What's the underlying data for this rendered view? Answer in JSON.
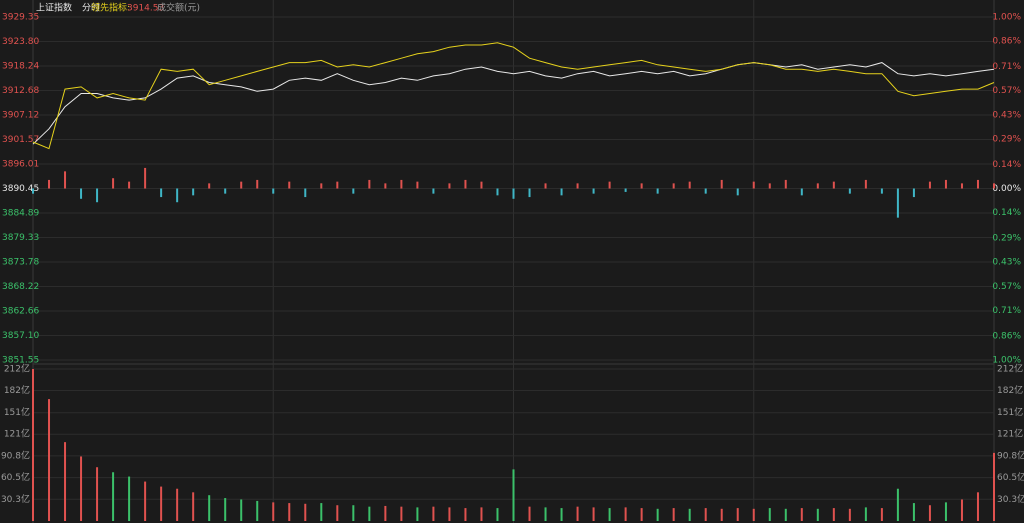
{
  "chart_data": [
    {
      "type": "line",
      "title": "上证指数",
      "subtitle": "分时",
      "indicator_value": 3914.53,
      "indicator_color": "#e0524f",
      "up_color": "#e0524f",
      "down_color": "#3bc16a",
      "x": [
        0,
        4,
        8,
        12,
        16,
        20,
        24,
        28,
        32,
        36,
        40,
        44,
        48,
        52,
        56,
        60,
        64,
        68,
        72,
        76,
        80,
        84,
        88,
        92,
        96,
        100,
        104,
        108,
        112,
        116,
        120,
        124,
        128,
        132,
        136,
        140,
        144,
        148,
        152,
        156,
        160,
        164,
        168,
        172,
        176,
        180,
        184,
        188,
        192,
        196,
        200,
        204,
        208,
        212,
        216,
        220,
        224,
        228,
        232,
        236,
        240
      ],
      "xlim": [
        0,
        240
      ],
      "ylim": [
        3851.55,
        3929.35
      ],
      "yticks": [
        {
          "value": 3929.35,
          "label": "3929.35"
        },
        {
          "value": 3923.8,
          "label": "3923.80"
        },
        3918.24,
        3912.68,
        3907.12,
        3901.57,
        3896.01,
        3890.45,
        3884.89,
        3879.33,
        3873.78,
        3868.22,
        3862.66,
        {
          "value": 3857.1,
          "label": "3857.10"
        },
        3851.55
      ],
      "y2lim": [
        -1,
        1
      ],
      "y2ticks": [
        {
          "value": 1,
          "label": "1.00%"
        },
        {
          "value": 0.86,
          "label": "0.86%"
        },
        {
          "value": 0.71,
          "label": "0.71%"
        },
        {
          "value": 0.57,
          "label": "0.57%"
        },
        {
          "value": 0.43,
          "label": "0.43%"
        },
        {
          "value": 0.29,
          "label": "0.29%"
        },
        {
          "value": 0.14,
          "label": "0.14%"
        },
        {
          "value": 0,
          "label": "0.00%"
        },
        {
          "value": -0.14,
          "label": "0.14%"
        },
        {
          "value": -0.29,
          "label": "0.29%"
        },
        {
          "value": -0.43,
          "label": "0.43%"
        },
        {
          "value": -0.57,
          "label": "0.57%"
        },
        {
          "value": -0.71,
          "label": "0.71%"
        },
        {
          "value": -0.86,
          "label": "0.86%"
        },
        {
          "value": -1,
          "label": "1.00%"
        }
      ],
      "series": [
        {
          "name": "上证指数",
          "color": "#e8e8e8",
          "values": [
            3900.5,
            3904,
            3909,
            3912,
            3912,
            3911,
            3910.5,
            3911,
            3913,
            3915.5,
            3916,
            3914.5,
            3914,
            3913.5,
            3912.5,
            3913,
            3915,
            3915.5,
            3915,
            3916.5,
            3915,
            3914,
            3914.5,
            3915.5,
            3915,
            3916,
            3916.5,
            3917.5,
            3918,
            3917,
            3916.5,
            3917,
            3916,
            3915.5,
            3916.5,
            3917,
            3916,
            3916.5,
            3917,
            3916.5,
            3917,
            3916,
            3916.5,
            3917.5,
            3918.5,
            3919,
            3918.5,
            3918,
            3918.5,
            3917.5,
            3918,
            3918.5,
            3918,
            3919,
            3916.5,
            3916,
            3916.5,
            3916,
            3916.5,
            3917,
            3917.5
          ]
        },
        {
          "name": "领先指标:",
          "color": "#e6d21c",
          "values": [
            3901,
            3899.5,
            3913,
            3913.5,
            3911,
            3912,
            3911,
            3910.5,
            3917.5,
            3917,
            3917.5,
            3914,
            3915,
            3916,
            3917,
            3918,
            3919,
            3919,
            3919.5,
            3918,
            3918.5,
            3918,
            3919,
            3920,
            3921,
            3921.5,
            3922.5,
            3923,
            3923,
            3923.5,
            3922.5,
            3920,
            3919,
            3918,
            3917.5,
            3918,
            3918.5,
            3919,
            3919.5,
            3918.5,
            3918,
            3917.5,
            3917,
            3917.5,
            3918.5,
            3919,
            3918.5,
            3917.5,
            3917.5,
            3917,
            3917.5,
            3917,
            3916.5,
            3916.5,
            3912.5,
            3911.5,
            3912,
            3912.5,
            3913,
            3913,
            3914.5
          ]
        }
      ]
    },
    {
      "type": "bar",
      "color": "#e0524f",
      "negative_color": "#3fb6c6",
      "x": [
        0,
        4,
        8,
        12,
        16,
        20,
        24,
        28,
        32,
        36,
        40,
        44,
        48,
        52,
        56,
        60,
        64,
        68,
        72,
        76,
        80,
        84,
        88,
        92,
        96,
        100,
        104,
        108,
        112,
        116,
        120,
        124,
        128,
        132,
        136,
        140,
        144,
        148,
        152,
        156,
        160,
        164,
        168,
        172,
        176,
        180,
        184,
        188,
        192,
        196,
        200,
        204,
        208,
        212,
        216,
        220,
        224,
        228,
        232,
        236,
        240
      ],
      "values": [
        -0.03,
        0.05,
        0.1,
        -0.06,
        -0.08,
        0.06,
        0.04,
        0.12,
        -0.05,
        -0.08,
        -0.04,
        0.03,
        -0.03,
        0.04,
        0.05,
        -0.03,
        0.04,
        -0.05,
        0.03,
        0.04,
        -0.03,
        0.05,
        0.03,
        0.05,
        0.04,
        -0.03,
        0.03,
        0.05,
        0.04,
        -0.04,
        -0.06,
        -0.05,
        0.03,
        -0.04,
        0.03,
        -0.03,
        0.04,
        -0.02,
        0.03,
        -0.03,
        0.03,
        0.04,
        -0.03,
        0.05,
        -0.04,
        0.04,
        0.03,
        0.05,
        -0.04,
        0.03,
        0.04,
        -0.03,
        0.05,
        -0.03,
        -0.17,
        -0.05,
        0.04,
        0.05,
        0.03,
        0.05,
        0.03
      ]
    },
    {
      "type": "bar",
      "title": "成交额(元)",
      "up_color": "#e0524f",
      "down_color": "#3bc16a",
      "x": [
        0,
        4,
        8,
        12,
        16,
        20,
        24,
        28,
        32,
        36,
        40,
        44,
        48,
        52,
        56,
        60,
        64,
        68,
        72,
        76,
        80,
        84,
        88,
        92,
        96,
        100,
        104,
        108,
        112,
        116,
        120,
        124,
        128,
        132,
        136,
        140,
        144,
        148,
        152,
        156,
        160,
        164,
        168,
        172,
        176,
        180,
        184,
        188,
        192,
        196,
        200,
        204,
        208,
        212,
        216,
        220,
        224,
        228,
        232,
        236,
        240
      ],
      "values": [
        212,
        170,
        110,
        90,
        75,
        68,
        62,
        55,
        48,
        45,
        40,
        36,
        32,
        30,
        28,
        26,
        25,
        24,
        25,
        22,
        22,
        20,
        21,
        20,
        19,
        20,
        19,
        18,
        19,
        18,
        72,
        20,
        19,
        18,
        20,
        19,
        18,
        19,
        18,
        17,
        18,
        17,
        18,
        17,
        18,
        17,
        18,
        17,
        18,
        17,
        18,
        17,
        19,
        18,
        45,
        25,
        22,
        26,
        30,
        40,
        95
      ],
      "ylim": [
        0,
        212
      ],
      "yticks": [
        {
          "value": 212,
          "label": "212亿"
        },
        {
          "value": 182,
          "label": "182亿"
        },
        {
          "value": 151,
          "label": "151亿"
        },
        {
          "value": 121,
          "label": "121亿"
        },
        {
          "value": 90.8,
          "label": "90.8亿"
        },
        {
          "value": 60.5,
          "label": "60.5亿"
        },
        {
          "value": 30.3,
          "label": "30.3亿"
        }
      ]
    }
  ]
}
